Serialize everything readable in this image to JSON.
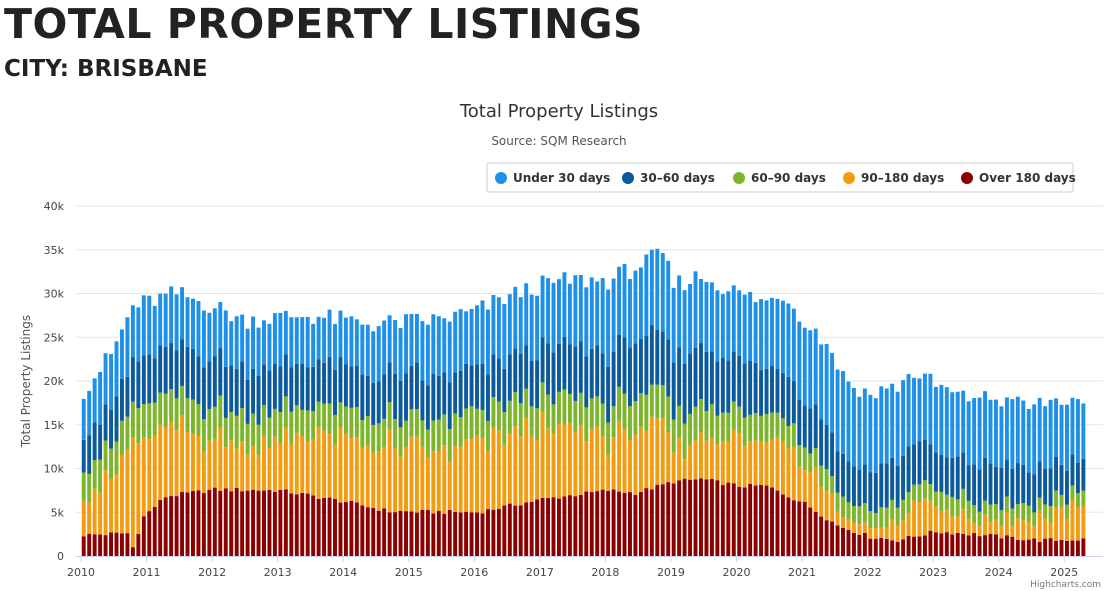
{
  "page": {
    "title": "TOTAL PROPERTY LISTINGS",
    "subtitle": "CITY: BRISBANE"
  },
  "colors": {
    "Under 30 days": "#1e90e8",
    "30–60 days": "#0b5a9c",
    "60–90 days": "#7db52c",
    "90–180 days": "#f39c12",
    "Over 180 days": "#8b0000",
    "grid": "#e6e6e6",
    "axis": "#ccd6eb"
  },
  "credits": "Highcharts.com",
  "chart_data": {
    "type": "bar",
    "stacked": true,
    "title": "Total Property Listings",
    "subtitle": "Source: SQM Research",
    "ylabel": "Total Property Listings",
    "xlabel": "",
    "ylim": [
      0,
      40000
    ],
    "yticks": [
      0,
      5000,
      10000,
      15000,
      20000,
      25000,
      30000,
      35000,
      40000
    ],
    "ytick_labels": [
      "0",
      "5k",
      "10k",
      "15k",
      "20k",
      "25k",
      "30k",
      "35k",
      "40k"
    ],
    "xtick_labels": [
      "2010",
      "2011",
      "2012",
      "2013",
      "2014",
      "2015",
      "2016",
      "2017",
      "2018",
      "2019",
      "2020",
      "2021",
      "2022",
      "2023",
      "2024",
      "2025"
    ],
    "grid": true,
    "legend_position": "top-right",
    "x_start": "2010-01",
    "x_end": "2025-04",
    "series_order_bottom_to_top": [
      "Over 180 days",
      "90–180 days",
      "60–90 days",
      "30–60 days",
      "Under 30 days"
    ],
    "series": [
      {
        "name": "Under 30 days"
      },
      {
        "name": "30–60 days"
      },
      {
        "name": "60–90 days"
      },
      {
        "name": "90–180 days"
      },
      {
        "name": "Over 180 days"
      }
    ],
    "anchors": {
      "Over 180 days": [
        [
          "2010-01",
          2400
        ],
        [
          "2010-09",
          2600
        ],
        [
          "2010-10",
          1000
        ],
        [
          "2010-12",
          4500
        ],
        [
          "2011-04",
          6800
        ],
        [
          "2012-01",
          7600
        ],
        [
          "2013-01",
          7500
        ],
        [
          "2014-01",
          6200
        ],
        [
          "2014-09",
          5100
        ],
        [
          "2016-01",
          5000
        ],
        [
          "2017-01",
          6500
        ],
        [
          "2018-01",
          7500
        ],
        [
          "2018-06",
          7200
        ],
        [
          "2019-01",
          8500
        ],
        [
          "2019-06",
          8800
        ],
        [
          "2020-01",
          8000
        ],
        [
          "2020-06",
          8000
        ],
        [
          "2021-01",
          6000
        ],
        [
          "2021-07",
          3500
        ],
        [
          "2022-01",
          2200
        ],
        [
          "2022-06",
          1800
        ],
        [
          "2023-01",
          2800
        ],
        [
          "2023-06",
          2600
        ],
        [
          "2024-01",
          2200
        ],
        [
          "2024-08",
          1800
        ],
        [
          "2025-04",
          1900
        ]
      ],
      "total": [
        [
          "2010-01",
          19000
        ],
        [
          "2010-06",
          23000
        ],
        [
          "2010-10",
          28500
        ],
        [
          "2011-06",
          30000
        ],
        [
          "2012-01",
          28500
        ],
        [
          "2012-06",
          27000
        ],
        [
          "2013-06",
          27500
        ],
        [
          "2014-06",
          26500
        ],
        [
          "2015-06",
          27000
        ],
        [
          "2016-01",
          28000
        ],
        [
          "2016-06",
          29500
        ],
        [
          "2017-01",
          31000
        ],
        [
          "2017-06",
          31500
        ],
        [
          "2018-01",
          31500
        ],
        [
          "2018-06",
          33000
        ],
        [
          "2018-11",
          34500
        ],
        [
          "2019-01",
          31000
        ],
        [
          "2019-06",
          32000
        ],
        [
          "2020-01",
          30000
        ],
        [
          "2020-06",
          29000
        ],
        [
          "2020-09",
          30000
        ],
        [
          "2021-01",
          27000
        ],
        [
          "2021-06",
          23500
        ],
        [
          "2021-09",
          19000
        ],
        [
          "2022-01",
          17500
        ],
        [
          "2022-06",
          19500
        ],
        [
          "2022-09",
          21000
        ],
        [
          "2023-01",
          19500
        ],
        [
          "2023-06",
          18000
        ],
        [
          "2023-12",
          18000
        ],
        [
          "2024-06",
          17000
        ],
        [
          "2024-12",
          18000
        ],
        [
          "2025-04",
          16500
        ]
      ],
      "Under 30 days": [
        [
          "2010-01",
          5000
        ],
        [
          "2010-10",
          6500
        ],
        [
          "2011-06",
          6500
        ],
        [
          "2012-06",
          5500
        ],
        [
          "2014-01",
          5500
        ],
        [
          "2016-06",
          7000
        ],
        [
          "2017-06",
          7500
        ],
        [
          "2018-11",
          9000
        ],
        [
          "2019-06",
          8000
        ],
        [
          "2020-06",
          7500
        ],
        [
          "2021-06",
          9000
        ],
        [
          "2022-06",
          8000
        ],
        [
          "2023-06",
          7500
        ],
        [
          "2024-06",
          7500
        ],
        [
          "2025-04",
          7000
        ]
      ],
      "30–60 days": [
        [
          "2010-01",
          4000
        ],
        [
          "2011-01",
          5500
        ],
        [
          "2012-01",
          5500
        ],
        [
          "2013-01",
          5000
        ],
        [
          "2016-01",
          5000
        ],
        [
          "2017-01",
          5500
        ],
        [
          "2018-06",
          6500
        ],
        [
          "2019-06",
          6500
        ],
        [
          "2020-06",
          5500
        ],
        [
          "2021-06",
          4800
        ],
        [
          "2022-01",
          4500
        ],
        [
          "2022-06",
          5000
        ],
        [
          "2023-01",
          4500
        ],
        [
          "2024-01",
          4500
        ],
        [
          "2025-04",
          3500
        ]
      ],
      "60–90 days": [
        [
          "2010-01",
          3500
        ],
        [
          "2011-01",
          3800
        ],
        [
          "2012-01",
          3500
        ],
        [
          "2014-01",
          3200
        ],
        [
          "2016-06",
          3500
        ],
        [
          "2018-06",
          3800
        ],
        [
          "2019-01",
          4000
        ],
        [
          "2020-06",
          3000
        ],
        [
          "2021-06",
          2200
        ],
        [
          "2022-06",
          2000
        ],
        [
          "2023-06",
          2000
        ],
        [
          "2024-06",
          1700
        ],
        [
          "2025-04",
          1700
        ]
      ]
    }
  }
}
